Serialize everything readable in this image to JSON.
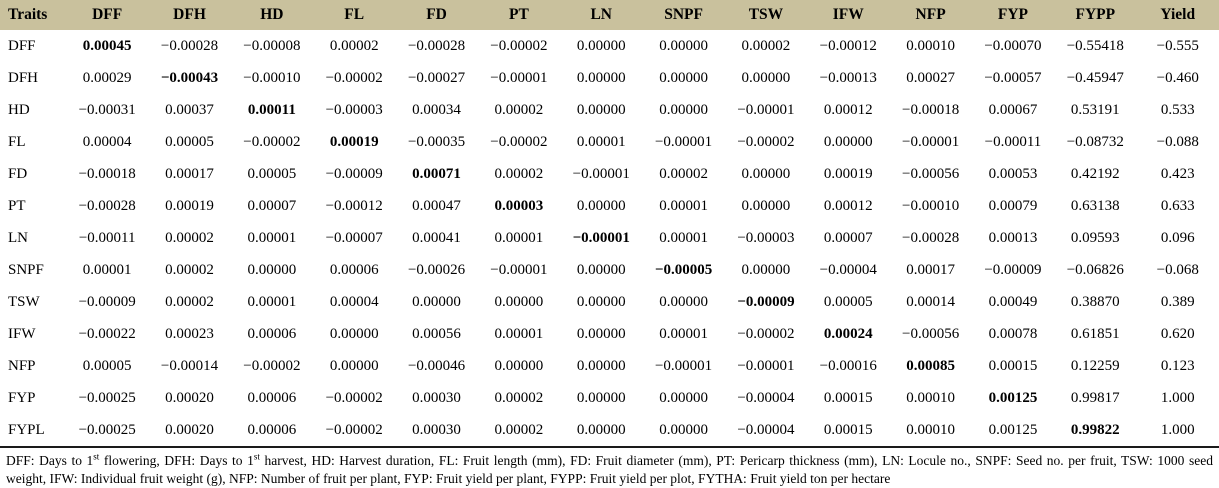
{
  "table": {
    "columns": [
      "Traits",
      "DFF",
      "DFH",
      "HD",
      "FL",
      "FD",
      "PT",
      "LN",
      "SNPF",
      "TSW",
      "IFW",
      "NFP",
      "FYP",
      "FYPP",
      "Yield"
    ],
    "rows": [
      {
        "trait": "DFF",
        "bold_index": 0,
        "values": [
          "0.00045",
          "−0.00028",
          "−0.00008",
          "0.00002",
          "−0.00028",
          "−0.00002",
          "0.00000",
          "0.00000",
          "0.00002",
          "−0.00012",
          "0.00010",
          "−0.00070",
          "−0.55418",
          "−0.555"
        ]
      },
      {
        "trait": "DFH",
        "bold_index": 1,
        "values": [
          "0.00029",
          "−0.00043",
          "−0.00010",
          "−0.00002",
          "−0.00027",
          "−0.00001",
          "0.00000",
          "0.00000",
          "0.00000",
          "−0.00013",
          "0.00027",
          "−0.00057",
          "−0.45947",
          "−0.460"
        ]
      },
      {
        "trait": "HD",
        "bold_index": 2,
        "values": [
          "−0.00031",
          "0.00037",
          "0.00011",
          "−0.00003",
          "0.00034",
          "0.00002",
          "0.00000",
          "0.00000",
          "−0.00001",
          "0.00012",
          "−0.00018",
          "0.00067",
          "0.53191",
          "0.533"
        ]
      },
      {
        "trait": "FL",
        "bold_index": 3,
        "values": [
          "0.00004",
          "0.00005",
          "−0.00002",
          "0.00019",
          "−0.00035",
          "−0.00002",
          "0.00001",
          "−0.00001",
          "−0.00002",
          "0.00000",
          "−0.00001",
          "−0.00011",
          "−0.08732",
          "−0.088"
        ]
      },
      {
        "trait": "FD",
        "bold_index": 4,
        "values": [
          "−0.00018",
          "0.00017",
          "0.00005",
          "−0.00009",
          "0.00071",
          "0.00002",
          "−0.00001",
          "0.00002",
          "0.00000",
          "0.00019",
          "−0.00056",
          "0.00053",
          "0.42192",
          "0.423"
        ]
      },
      {
        "trait": "PT",
        "bold_index": 5,
        "values": [
          "−0.00028",
          "0.00019",
          "0.00007",
          "−0.00012",
          "0.00047",
          "0.00003",
          "0.00000",
          "0.00001",
          "0.00000",
          "0.00012",
          "−0.00010",
          "0.00079",
          "0.63138",
          "0.633"
        ]
      },
      {
        "trait": "LN",
        "bold_index": 6,
        "values": [
          "−0.00011",
          "0.00002",
          "0.00001",
          "−0.00007",
          "0.00041",
          "0.00001",
          "−0.00001",
          "0.00001",
          "−0.00003",
          "0.00007",
          "−0.00028",
          "0.00013",
          "0.09593",
          "0.096"
        ]
      },
      {
        "trait": "SNPF",
        "bold_index": 7,
        "values": [
          "0.00001",
          "0.00002",
          "0.00000",
          "0.00006",
          "−0.00026",
          "−0.00001",
          "0.00000",
          "−0.00005",
          "0.00000",
          "−0.00004",
          "0.00017",
          "−0.00009",
          "−0.06826",
          "−0.068"
        ]
      },
      {
        "trait": "TSW",
        "bold_index": 8,
        "values": [
          "−0.00009",
          "0.00002",
          "0.00001",
          "0.00004",
          "0.00000",
          "0.00000",
          "0.00000",
          "0.00000",
          "−0.00009",
          "0.00005",
          "0.00014",
          "0.00049",
          "0.38870",
          "0.389"
        ]
      },
      {
        "trait": "IFW",
        "bold_index": 9,
        "values": [
          "−0.00022",
          "0.00023",
          "0.00006",
          "0.00000",
          "0.00056",
          "0.00001",
          "0.00000",
          "0.00001",
          "−0.00002",
          "0.00024",
          "−0.00056",
          "0.00078",
          "0.61851",
          "0.620"
        ]
      },
      {
        "trait": "NFP",
        "bold_index": 10,
        "values": [
          "0.00005",
          "−0.00014",
          "−0.00002",
          "0.00000",
          "−0.00046",
          "0.00000",
          "0.00000",
          "−0.00001",
          "−0.00001",
          "−0.00016",
          "0.00085",
          "0.00015",
          "0.12259",
          "0.123"
        ]
      },
      {
        "trait": "FYP",
        "bold_index": 11,
        "values": [
          "−0.00025",
          "0.00020",
          "0.00006",
          "−0.00002",
          "0.00030",
          "0.00002",
          "0.00000",
          "0.00000",
          "−0.00004",
          "0.00015",
          "0.00010",
          "0.00125",
          "0.99817",
          "1.000"
        ]
      },
      {
        "trait": "FYPL",
        "bold_index": 12,
        "values": [
          "−0.00025",
          "0.00020",
          "0.00006",
          "−0.00002",
          "0.00030",
          "0.00002",
          "0.00000",
          "0.00000",
          "−0.00004",
          "0.00015",
          "0.00010",
          "0.00125",
          "0.99822",
          "1.000"
        ]
      }
    ]
  },
  "footnote": {
    "parts": [
      {
        "t": "DFF: Days to 1"
      },
      {
        "t": "st",
        "sup": true
      },
      {
        "t": " flowering, DFH: Days to 1"
      },
      {
        "t": "st",
        "sup": true
      },
      {
        "t": " harvest, HD: Harvest duration, FL: Fruit length (mm), FD: Fruit diameter (mm), PT: Pericarp thickness (mm), LN: Locule no., SNPF: Seed no. per fruit, TSW: 1000 seed weight, IFW: Individual fruit weight (g), NFP: Number of fruit per plant, FYP: Fruit yield per plant, FYPP: Fruit yield per plot, FYTHA: Fruit yield ton per hectare"
      }
    ]
  },
  "colors": {
    "header_bg": "#c9c19d",
    "text": "#000000",
    "rule": "#1a1a1a"
  }
}
